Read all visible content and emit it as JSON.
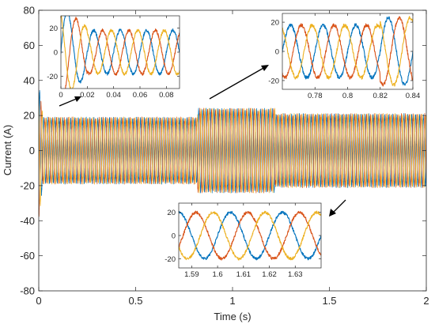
{
  "chart_data": {
    "type": "line",
    "title": "",
    "xlabel": "Time (s)",
    "ylabel": "Current (A)",
    "xlim": [
      0,
      2
    ],
    "ylim": [
      -80,
      80
    ],
    "xticks": [
      0,
      0.5,
      1,
      1.5,
      2
    ],
    "xtick_labels": [
      "0",
      "0.5",
      "1",
      "1.5",
      "2"
    ],
    "yticks": [
      -80,
      -60,
      -40,
      -20,
      0,
      20,
      40,
      60,
      80
    ],
    "ytick_labels": [
      "-80",
      "-60",
      "-40",
      "-20",
      "0",
      "20",
      "40",
      "60",
      "80"
    ],
    "grid": false,
    "legend": "none",
    "fundamental_frequency_hz": 50,
    "phase_shift_deg": 120,
    "series_colors": [
      "#0072BD",
      "#D95319",
      "#EDB120"
    ],
    "amplitude_segments": [
      {
        "t_start": 0.0,
        "t_end": 0.02,
        "amplitude_start": 38,
        "amplitude_end": 20
      },
      {
        "t_start": 0.02,
        "t_end": 0.82,
        "amplitude": 18
      },
      {
        "t_start": 0.82,
        "t_end": 1.22,
        "amplitude": 23
      },
      {
        "t_start": 1.22,
        "t_end": 2.0,
        "amplitude": 20
      }
    ],
    "insets": [
      {
        "name": "inset-start",
        "xlim": [
          0,
          0.09
        ],
        "ylim": [
          -30,
          30
        ],
        "xticks": [
          0,
          0.02,
          0.04,
          0.06,
          0.08
        ],
        "xtick_labels": [
          "0",
          "0.02",
          "0.04",
          "0.06",
          "0.08"
        ],
        "yticks": [
          -20,
          0,
          20
        ],
        "ytick_labels": [
          "-20",
          "0",
          "20"
        ]
      },
      {
        "name": "inset-step",
        "xlim": [
          0.76,
          0.84
        ],
        "ylim": [
          -26,
          26
        ],
        "xticks": [
          0.78,
          0.8,
          0.82,
          0.84
        ],
        "xtick_labels": [
          "0.78",
          "0.8",
          "0.82",
          "0.84"
        ],
        "yticks": [
          -20,
          0,
          20
        ],
        "ytick_labels": [
          "-20",
          "0",
          "20"
        ]
      },
      {
        "name": "inset-end",
        "xlim": [
          1.585,
          1.64
        ],
        "ylim": [
          -28,
          28
        ],
        "xticks": [
          1.59,
          1.6,
          1.61,
          1.62,
          1.63
        ],
        "xtick_labels": [
          "1.59",
          "1.6",
          "1.61",
          "1.62",
          "1.63"
        ],
        "yticks": [
          -20,
          0,
          20
        ],
        "ytick_labels": [
          "-20",
          "0",
          "20"
        ]
      }
    ]
  }
}
